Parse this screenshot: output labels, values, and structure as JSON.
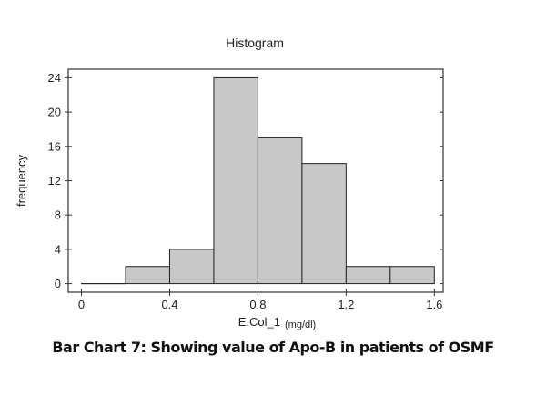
{
  "chart_data": {
    "type": "bar",
    "title": "Histogram",
    "xlabel": "E.Col_1",
    "xlabel_unit": "(mg/dl)",
    "ylabel": "frequency",
    "bin_edges": [
      0,
      0.2,
      0.4,
      0.6,
      0.8,
      1.0,
      1.2,
      1.4,
      1.6
    ],
    "values": [
      0,
      2,
      4,
      24,
      17,
      14,
      2,
      2
    ],
    "xlim": [
      -0.06,
      1.64
    ],
    "ylim": [
      -1,
      25
    ],
    "x_ticks": [
      "0",
      "0.4",
      "0.8",
      "1.2",
      "1.6"
    ],
    "y_ticks": [
      "0",
      "4",
      "8",
      "12",
      "16",
      "20",
      "24"
    ],
    "bar_color": "#c8c8c8",
    "grid": false,
    "legend": "none"
  },
  "caption": "Bar Chart 7: Showing value of Apo-B in patients of OSMF"
}
